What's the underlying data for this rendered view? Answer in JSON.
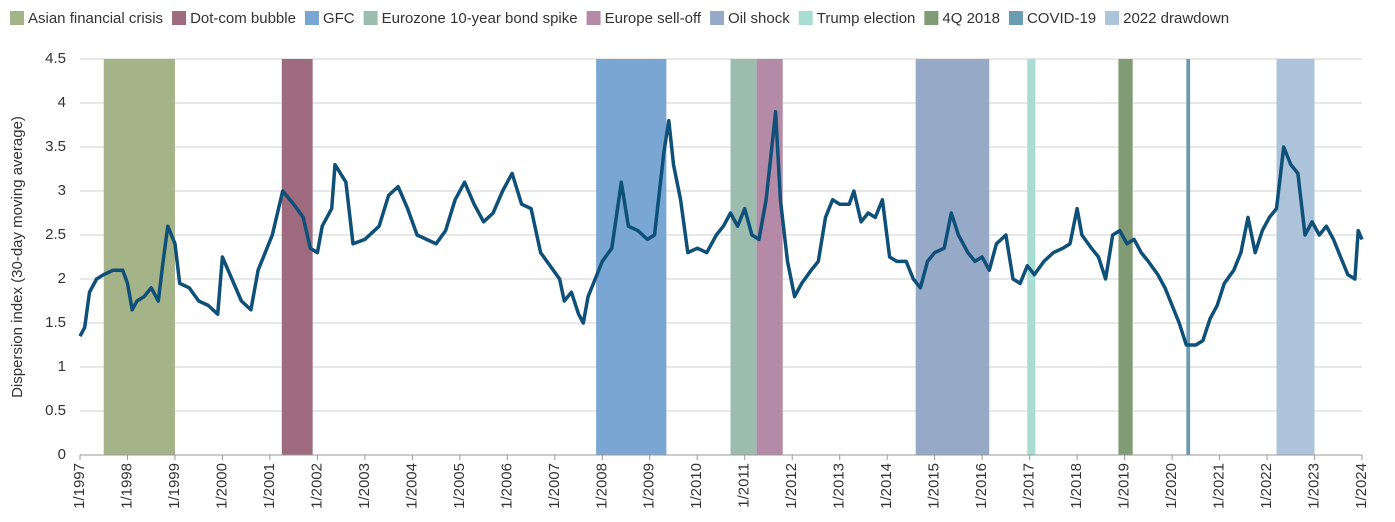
{
  "chart_data": {
    "type": "line",
    "ylabel": "Dispersion index (30-day moving average)",
    "color": "#0e5078",
    "xlim": [
      1997,
      2024
    ],
    "xticks": [
      {
        "value": 1997,
        "label": "1/1997"
      },
      {
        "value": 1998,
        "label": "1/1998"
      },
      {
        "value": 1999,
        "label": "1/1999"
      },
      {
        "value": 2000,
        "label": "1/2000"
      },
      {
        "value": 2001,
        "label": "1/2001"
      },
      {
        "value": 2002,
        "label": "1/2002"
      },
      {
        "value": 2003,
        "label": "1/2003"
      },
      {
        "value": 2004,
        "label": "1/2004"
      },
      {
        "value": 2005,
        "label": "1/2005"
      },
      {
        "value": 2006,
        "label": "1/2006"
      },
      {
        "value": 2007,
        "label": "1/2007"
      },
      {
        "value": 2008,
        "label": "1/2008"
      },
      {
        "value": 2009,
        "label": "1/2009"
      },
      {
        "value": 2010,
        "label": "1/2010"
      },
      {
        "value": 2011,
        "label": "1/2011"
      },
      {
        "value": 2012,
        "label": "1/2012"
      },
      {
        "value": 2013,
        "label": "1/2013"
      },
      {
        "value": 2014,
        "label": "1/2014"
      },
      {
        "value": 2015,
        "label": "1/2015"
      },
      {
        "value": 2016,
        "label": "1/2016"
      },
      {
        "value": 2017,
        "label": "1/2017"
      },
      {
        "value": 2018,
        "label": "1/2018"
      },
      {
        "value": 2019,
        "label": "1/2019"
      },
      {
        "value": 2020,
        "label": "1/2020"
      },
      {
        "value": 2021,
        "label": "1/2021"
      },
      {
        "value": 2022,
        "label": "1/2022"
      },
      {
        "value": 2023,
        "label": "1/2023"
      },
      {
        "value": 2024,
        "label": "1/2024"
      }
    ],
    "ylim": [
      0,
      4.5
    ],
    "yticks": [
      0,
      0.5,
      1,
      1.5,
      2,
      2.5,
      3,
      3.5,
      4,
      4.5
    ],
    "grid": true,
    "regions": [
      {
        "name": "Asian financial crisis",
        "color": "#a5b388",
        "start": 1997.5,
        "end": 1999.0
      },
      {
        "name": "Dot-com bubble",
        "color": "#9e6b7e",
        "start": 2001.25,
        "end": 2001.9
      },
      {
        "name": "GFC",
        "color": "#79a6d2",
        "start": 2007.87,
        "end": 2009.35
      },
      {
        "name": "Eurozone 10-year bond spike",
        "color": "#9dbcb0",
        "start": 2010.7,
        "end": 2011.25
      },
      {
        "name": "Europe sell-off",
        "color": "#b58aa7",
        "start": 2011.25,
        "end": 2011.8
      },
      {
        "name": "Oil shock",
        "color": "#96aac8",
        "start": 2014.6,
        "end": 2016.15
      },
      {
        "name": "Trump election",
        "color": "#a8ddd3",
        "start": 2016.95,
        "end": 2017.12
      },
      {
        "name": "4Q 2018",
        "color": "#819b74",
        "start": 2018.87,
        "end": 2019.17
      },
      {
        "name": "COVID-19",
        "color": "#6a9cb2",
        "start": 2020.3,
        "end": 2020.38
      },
      {
        "name": "2022 drawdown",
        "color": "#acc3da",
        "start": 2022.2,
        "end": 2023.0
      }
    ],
    "x": [
      1997.0,
      1997.1,
      1997.2,
      1997.35,
      1997.5,
      1997.7,
      1997.9,
      1998.0,
      1998.1,
      1998.2,
      1998.35,
      1998.5,
      1998.65,
      1998.75,
      1998.85,
      1999.0,
      1999.1,
      1999.3,
      1999.5,
      1999.7,
      1999.9,
      2000.0,
      2000.2,
      2000.4,
      2000.6,
      2000.75,
      2001.05,
      2001.27,
      2001.5,
      2001.7,
      2001.85,
      2002.0,
      2002.1,
      2002.3,
      2002.37,
      2002.6,
      2002.75,
      2003.0,
      2003.3,
      2003.5,
      2003.7,
      2003.9,
      2004.1,
      2004.3,
      2004.5,
      2004.7,
      2004.9,
      2005.1,
      2005.3,
      2005.5,
      2005.7,
      2005.9,
      2006.1,
      2006.3,
      2006.5,
      2006.7,
      2006.9,
      2007.1,
      2007.2,
      2007.35,
      2007.5,
      2007.6,
      2007.7,
      2007.85,
      2008.0,
      2008.2,
      2008.4,
      2008.55,
      2008.75,
      2008.95,
      2009.1,
      2009.3,
      2009.4,
      2009.5,
      2009.65,
      2009.8,
      2010.0,
      2010.2,
      2010.4,
      2010.55,
      2010.7,
      2010.85,
      2011.0,
      2011.15,
      2011.3,
      2011.45,
      2011.55,
      2011.65,
      2011.75,
      2011.9,
      2012.05,
      2012.2,
      2012.4,
      2012.55,
      2012.7,
      2012.85,
      2013.0,
      2013.2,
      2013.3,
      2013.45,
      2013.6,
      2013.75,
      2013.9,
      2014.05,
      2014.2,
      2014.4,
      2014.55,
      2014.7,
      2014.85,
      2015.0,
      2015.2,
      2015.35,
      2015.5,
      2015.7,
      2015.85,
      2016.0,
      2016.15,
      2016.3,
      2016.5,
      2016.65,
      2016.8,
      2016.95,
      2017.1,
      2017.3,
      2017.5,
      2017.7,
      2017.85,
      2018.0,
      2018.1,
      2018.3,
      2018.45,
      2018.6,
      2018.75,
      2018.9,
      2019.05,
      2019.2,
      2019.35,
      2019.5,
      2019.7,
      2019.85,
      2020.0,
      2020.15,
      2020.3,
      2020.5,
      2020.65,
      2020.8,
      2020.95,
      2021.1,
      2021.3,
      2021.45,
      2021.6,
      2021.75,
      2021.9,
      2022.05,
      2022.2,
      2022.35,
      2022.5,
      2022.65,
      2022.8,
      2022.95,
      2023.1,
      2023.25,
      2023.4,
      2023.55,
      2023.7,
      2023.85,
      2023.92,
      2024.0
    ],
    "values": [
      1.35,
      1.45,
      1.85,
      2.0,
      2.05,
      2.1,
      2.1,
      1.95,
      1.65,
      1.75,
      1.8,
      1.9,
      1.75,
      2.2,
      2.6,
      2.4,
      1.95,
      1.9,
      1.75,
      1.7,
      1.6,
      2.25,
      2.0,
      1.75,
      1.65,
      2.1,
      2.5,
      3.0,
      2.85,
      2.7,
      2.35,
      2.3,
      2.6,
      2.8,
      3.3,
      3.1,
      2.4,
      2.45,
      2.6,
      2.95,
      3.05,
      2.8,
      2.5,
      2.45,
      2.4,
      2.55,
      2.9,
      3.1,
      2.85,
      2.65,
      2.75,
      3.0,
      3.2,
      2.85,
      2.8,
      2.3,
      2.15,
      2.0,
      1.75,
      1.85,
      1.6,
      1.5,
      1.8,
      2.0,
      2.2,
      2.35,
      3.1,
      2.6,
      2.55,
      2.45,
      2.5,
      3.45,
      3.8,
      3.3,
      2.9,
      2.3,
      2.35,
      2.3,
      2.5,
      2.6,
      2.75,
      2.6,
      2.8,
      2.5,
      2.45,
      2.9,
      3.4,
      3.9,
      2.9,
      2.2,
      1.8,
      1.95,
      2.1,
      2.2,
      2.7,
      2.9,
      2.85,
      2.85,
      3.0,
      2.65,
      2.75,
      2.7,
      2.9,
      2.25,
      2.2,
      2.2,
      2.0,
      1.9,
      2.2,
      2.3,
      2.35,
      2.75,
      2.5,
      2.3,
      2.2,
      2.25,
      2.1,
      2.4,
      2.5,
      2.0,
      1.95,
      2.15,
      2.05,
      2.2,
      2.3,
      2.35,
      2.4,
      2.8,
      2.5,
      2.35,
      2.25,
      2.0,
      2.5,
      2.55,
      2.4,
      2.45,
      2.3,
      2.2,
      2.05,
      1.9,
      1.7,
      1.5,
      1.25,
      1.25,
      1.3,
      1.55,
      1.7,
      1.95,
      2.1,
      2.3,
      2.7,
      2.3,
      2.55,
      2.7,
      2.8,
      3.5,
      3.3,
      3.2,
      2.5,
      2.65,
      2.5,
      2.6,
      2.45,
      2.25,
      2.05,
      2.0,
      2.55,
      2.45
    ]
  }
}
